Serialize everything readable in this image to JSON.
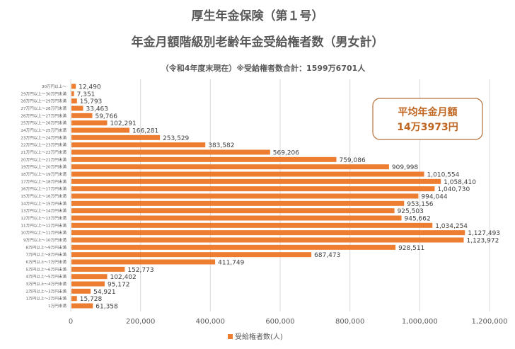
{
  "chart_data": {
    "type": "bar",
    "orientation": "horizontal",
    "title": "厚生年金保険（第１号）",
    "subtitle": "年金月額階級別老齢年金受給権者数（男女計）",
    "note": "（令和4年度末現在）※受給権者数合計：1599万6701人",
    "callout": {
      "line1": "平均年金月額",
      "line2": "14万3973円"
    },
    "categories": [
      "30万円以上〜",
      "29万円以上〜30万円未満",
      "28万円以上〜29万円未満",
      "27万円以上〜28万円未満",
      "26万円以上〜27万円未満",
      "25万円以上〜26万円未満",
      "24万円以上〜25万円未満",
      "23万円以上〜24万円未満",
      "22万円以上〜23万円未満",
      "21万円以上〜22万円未満",
      "20万円以上〜21万円未満",
      "19万円以上〜20万円未満",
      "18万円以上〜19万円未満",
      "17万円以上〜18万円未満",
      "16万円以上〜17万円未満",
      "15万円以上〜16万円未満",
      "14万円以上〜15万円未満",
      "13万円以上〜14万円未満",
      "12万円以上〜13万円未満",
      "11万円以上〜12万円未満",
      "10万円以上〜11万円未満",
      "9万円以上〜10万円未満",
      "8万円以上〜9万円未満",
      "7万円以上〜8万円未満",
      "6万円以上〜7万円未満",
      "5万円以上〜6万円未満",
      "4万円以上〜5万円未満",
      "3万円以上〜4万円未満",
      "2万円以上〜3万円未満",
      "1万円以上〜2万円未満",
      "1万円未満"
    ],
    "series": [
      {
        "name": "受給権者数(人)",
        "color": "#ed7d31",
        "values": [
          12490,
          7351,
          15793,
          33463,
          59766,
          102291,
          166281,
          253529,
          383582,
          569206,
          759086,
          909998,
          1010554,
          1058410,
          1040730,
          994044,
          953156,
          925503,
          945662,
          1034254,
          1127493,
          1123972,
          928511,
          687473,
          411749,
          152773,
          102402,
          95172,
          54921,
          15728,
          61358
        ]
      }
    ],
    "data_labels": [
      "12,490",
      "7,351",
      "15,793",
      "33,463",
      "59,766",
      "102,291",
      "166,281",
      "253,529",
      "383,582",
      "569,206",
      "759,086",
      "909,998",
      "1,010,554",
      "1,058,410",
      "1,040,730",
      "994,044",
      "953,156",
      "925,503",
      "945,662",
      "1,034,254",
      "1,127,493",
      "1,123,972",
      "928,511",
      "687,473",
      "411,749",
      "152,773",
      "102,402",
      "95,172",
      "54,921",
      "15,728",
      "61,358"
    ],
    "xlim": [
      0,
      1200000
    ],
    "x_ticks": [
      0,
      200000,
      400000,
      600000,
      800000,
      1000000,
      1200000
    ],
    "x_tick_labels": [
      "0",
      "200,000",
      "400,000",
      "600,000",
      "800,000",
      "1,000,000",
      "1,200,000"
    ],
    "grid": true,
    "legend_position": "bottom"
  }
}
